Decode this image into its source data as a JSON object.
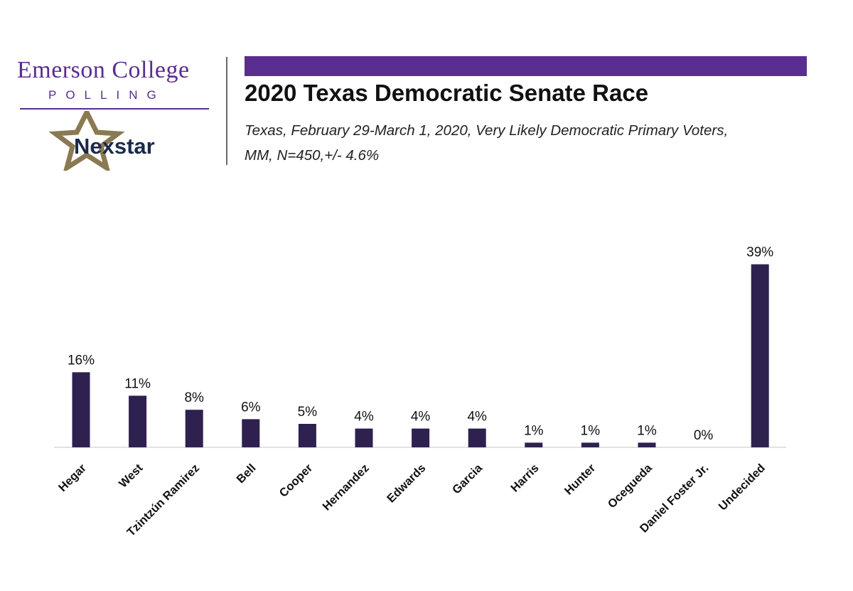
{
  "logo": {
    "line1": "Emerson College",
    "line2": "POLLING",
    "partner": "Nexstar",
    "partner_icon": "star-icon"
  },
  "header": {
    "title": "2020 Texas Democratic Senate Race",
    "subtitle_line1": "Texas, February 29-March 1, 2020, Very Likely Democratic Primary Voters,",
    "subtitle_line2": "MM,  N=450,+/-  4.6%"
  },
  "colors": {
    "brand_purple": "#5a2d91",
    "bar": "#2e2150",
    "nexstar_gold": "#8a7a52",
    "nexstar_text": "#1a2a4a"
  },
  "chart_data": {
    "type": "bar",
    "categories": [
      "Hegar",
      "West",
      "Tzintzún Ramirez",
      "Bell",
      "Cooper",
      "Hernandez",
      "Edwards",
      "Garcia",
      "Harris",
      "Hunter",
      "Ocegueda",
      "Daniel Foster Jr.",
      "Undecided"
    ],
    "values": [
      16,
      11,
      8,
      6,
      5,
      4,
      4,
      4,
      1,
      1,
      1,
      0,
      39
    ],
    "data_labels": [
      "16%",
      "11%",
      "8%",
      "6%",
      "5%",
      "4%",
      "4%",
      "4%",
      "1%",
      "1%",
      "1%",
      "0%",
      "39%"
    ],
    "unit": "%",
    "ylim": [
      0,
      40
    ],
    "grid": false,
    "legend": "none"
  }
}
